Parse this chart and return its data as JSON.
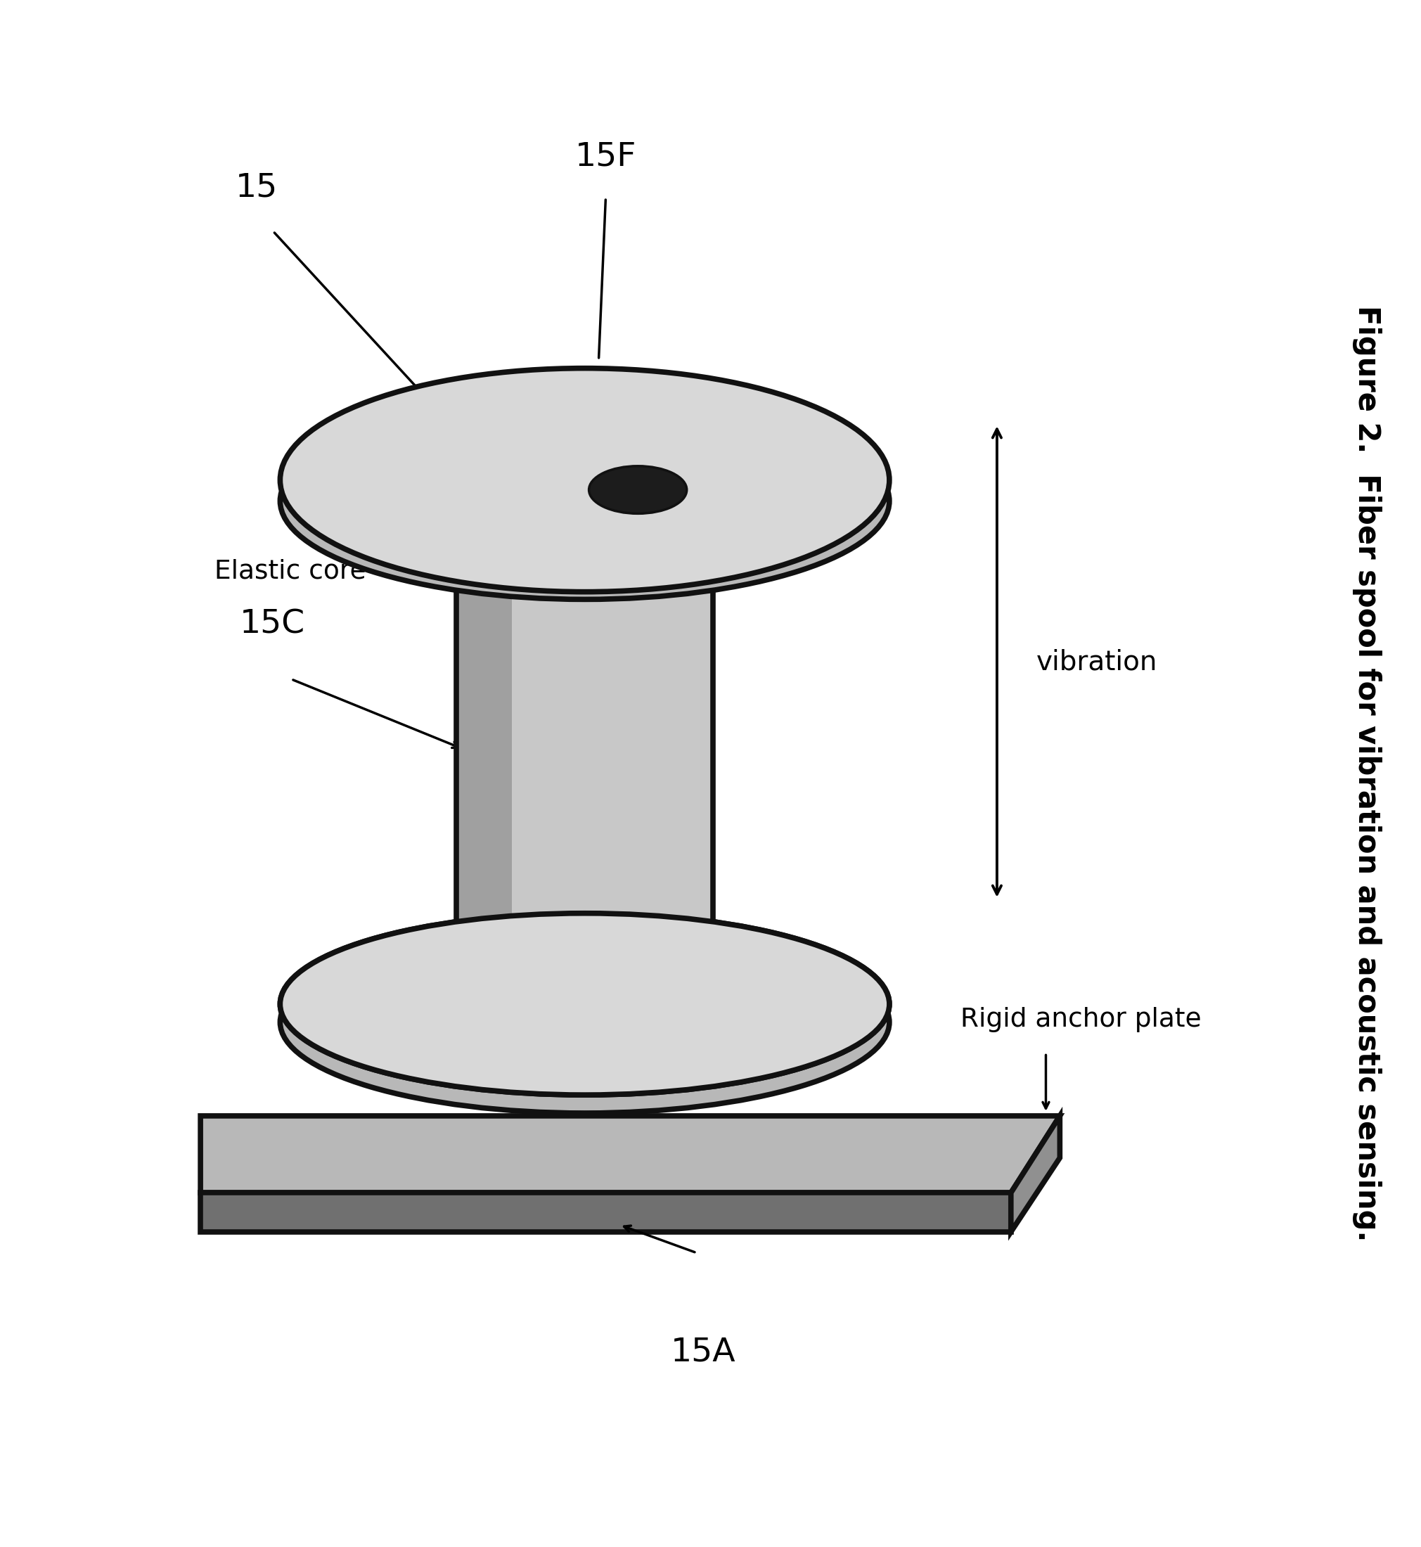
{
  "bg_color": "#ffffff",
  "figure_caption": "Figure 2.  Fiber spool for vibration and acoustic sensing.",
  "label_15": "15",
  "label_15F": "15F",
  "label_15C": "15C",
  "label_15A": "15A",
  "label_elastic_core": "Elastic core",
  "label_vibration": "vibration",
  "label_rigid_anchor": "Rigid anchor plate",
  "colors": {
    "spool_light": "#d8d8d8",
    "spool_mid": "#b8b8b8",
    "spool_dark": "#989898",
    "outline": "#111111",
    "barrel_light": "#c8c8c8",
    "barrel_shadow": "#a0a0a0",
    "base_top": "#b8b8b8",
    "base_side": "#707070",
    "base_right": "#909090",
    "hole": "#1c1c1c"
  }
}
